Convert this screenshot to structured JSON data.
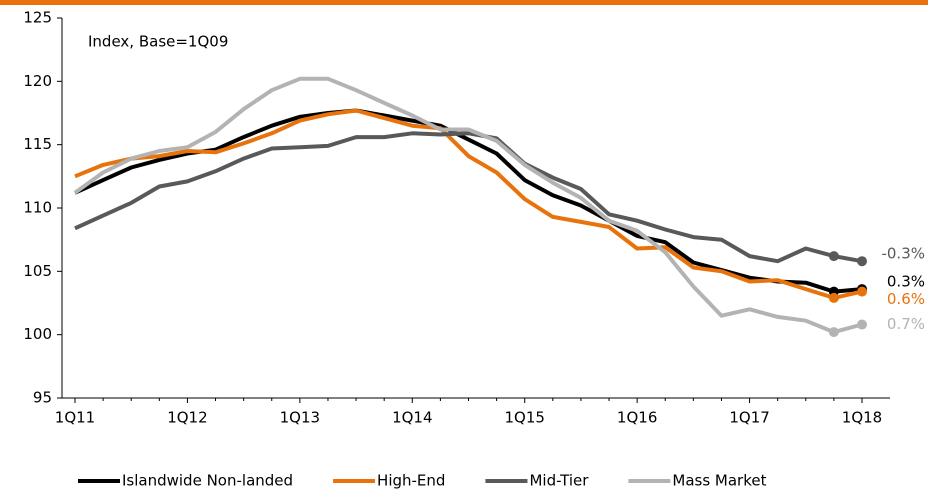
{
  "chart_data": {
    "type": "line",
    "annotation": "Index, Base=1Q09",
    "categories": [
      "1Q11",
      null,
      null,
      null,
      "1Q12",
      null,
      null,
      null,
      "1Q13",
      null,
      null,
      null,
      "1Q14",
      null,
      null,
      null,
      "1Q15",
      null,
      null,
      null,
      "1Q16",
      null,
      null,
      null,
      "1Q17",
      null,
      null,
      null,
      "1Q18"
    ],
    "series": [
      {
        "name": "Islandwide Non-landed",
        "color": "#000000",
        "end_label": "0.3%",
        "values": [
          111.2,
          112.2,
          113.2,
          113.8,
          114.3,
          114.6,
          115.6,
          116.5,
          117.2,
          117.5,
          117.7,
          117.3,
          116.9,
          116.5,
          115.4,
          114.3,
          112.2,
          111.0,
          110.2,
          109.0,
          107.8,
          107.3,
          105.7,
          105.1,
          104.5,
          104.2,
          104.1,
          103.4,
          103.6
        ]
      },
      {
        "name": "High-End",
        "color": "#e8730c",
        "end_label": "0.6%",
        "values": [
          112.5,
          113.4,
          113.9,
          114.1,
          114.5,
          114.4,
          115.1,
          115.9,
          116.9,
          117.4,
          117.7,
          117.1,
          116.5,
          116.3,
          114.1,
          112.8,
          110.7,
          109.3,
          108.9,
          108.5,
          106.8,
          106.9,
          105.3,
          105.0,
          104.2,
          104.3,
          103.6,
          102.9,
          103.4
        ]
      },
      {
        "name": "Mid-Tier",
        "color": "#595959",
        "end_label": "-0.3%",
        "values": [
          108.4,
          109.4,
          110.4,
          111.7,
          112.1,
          112.9,
          113.9,
          114.7,
          114.8,
          114.9,
          115.6,
          115.6,
          115.9,
          115.8,
          115.9,
          115.5,
          113.5,
          112.4,
          111.5,
          109.5,
          109.0,
          108.3,
          107.7,
          107.5,
          106.2,
          105.8,
          106.8,
          106.2,
          105.8
        ]
      },
      {
        "name": "Mass Market",
        "color": "#b3b3b3",
        "end_label": "0.7%",
        "values": [
          111.2,
          112.8,
          113.9,
          114.5,
          114.8,
          116.0,
          117.8,
          119.3,
          120.2,
          120.2,
          119.3,
          118.3,
          117.3,
          116.2,
          116.2,
          115.3,
          113.4,
          112.0,
          110.8,
          109.0,
          108.2,
          106.5,
          103.8,
          101.5,
          102.0,
          101.4,
          101.1,
          100.2,
          100.8
        ]
      }
    ],
    "ylim": [
      95,
      125
    ],
    "yticks": [
      95,
      100,
      105,
      110,
      115,
      120,
      125
    ],
    "grid": false,
    "legend": "bottom"
  }
}
